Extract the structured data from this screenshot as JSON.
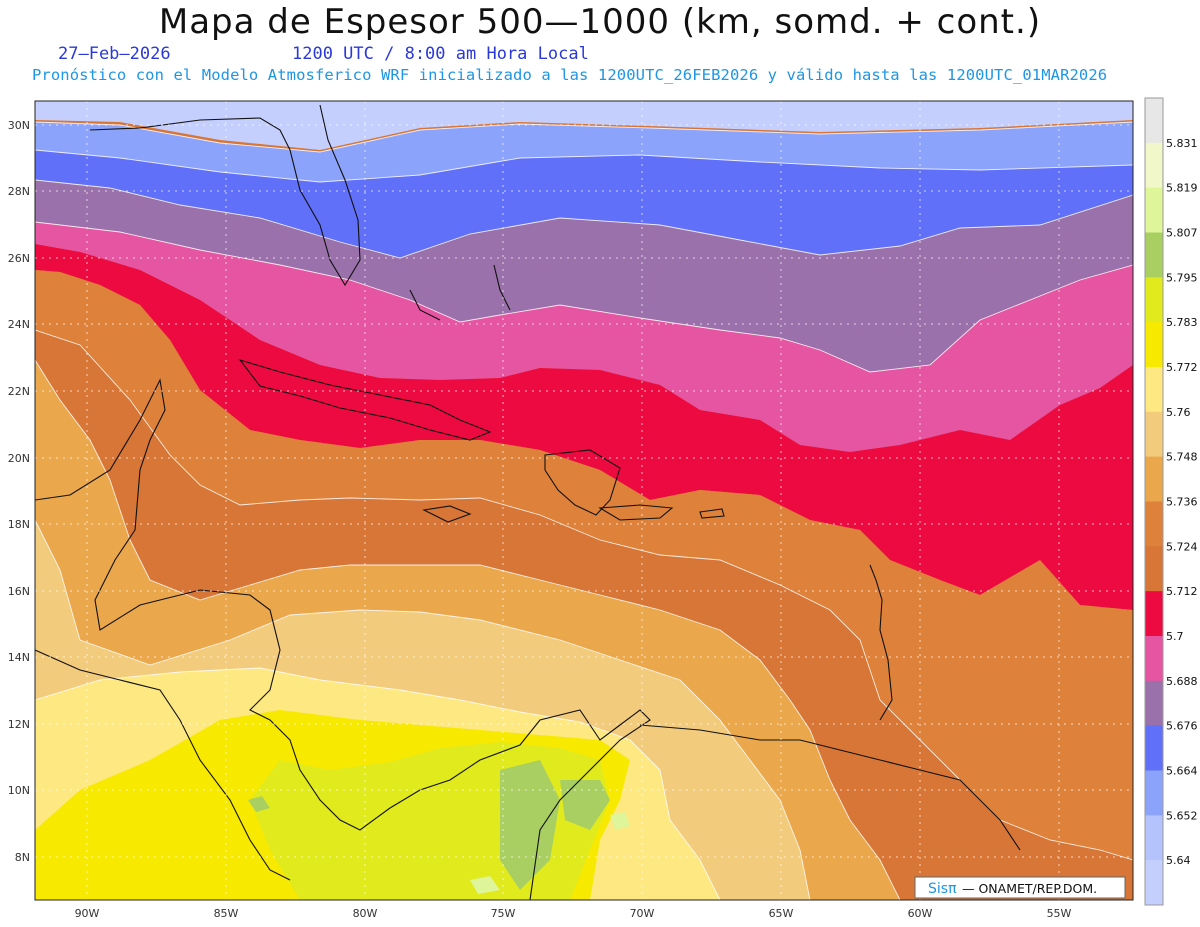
{
  "header": {
    "title": "Mapa de Espesor 500—1000 (km, somd. + cont.)",
    "date": "27—Feb—2026",
    "time": "1200 UTC / 8:00 am Hora Local",
    "forecast": "Pronóstico con el Modelo Atmosferico WRF inicializado a las 1200UTC_26FEB2026 y válido hasta las  1200UTC_01MAR2026"
  },
  "map": {
    "lat_ticks": [
      "30N",
      "28N",
      "26N",
      "24N",
      "22N",
      "20N",
      "18N",
      "16N",
      "14N",
      "12N",
      "10N",
      "8N"
    ],
    "lon_ticks": [
      "90W",
      "85W",
      "80W",
      "75W",
      "70W",
      "65W",
      "60W",
      "55W"
    ],
    "grid": true
  },
  "legend": {
    "levels": [
      "5.831",
      "5.819",
      "5.807",
      "5.795",
      "5.783",
      "5.772",
      "5.76",
      "5.748",
      "5.736",
      "5.724",
      "5.712",
      "5.7",
      "5.688",
      "5.676",
      "5.664",
      "5.652",
      "5.64"
    ],
    "colors": [
      "#e7e7e7",
      "#f1f7c8",
      "#dff59a",
      "#a9cf62",
      "#e1ea1c",
      "#f8e901",
      "#fde882",
      "#f3cb7d",
      "#eba74c",
      "#de823b",
      "#d77636",
      "#ec0a41",
      "#e655a1",
      "#9a71aa",
      "#6170f8",
      "#8ba3fb",
      "#b5c3fd",
      "#c5cffe"
    ]
  },
  "credit": {
    "brand": "Sisπ",
    "text": "— ONAMET/REP.DOM."
  }
}
